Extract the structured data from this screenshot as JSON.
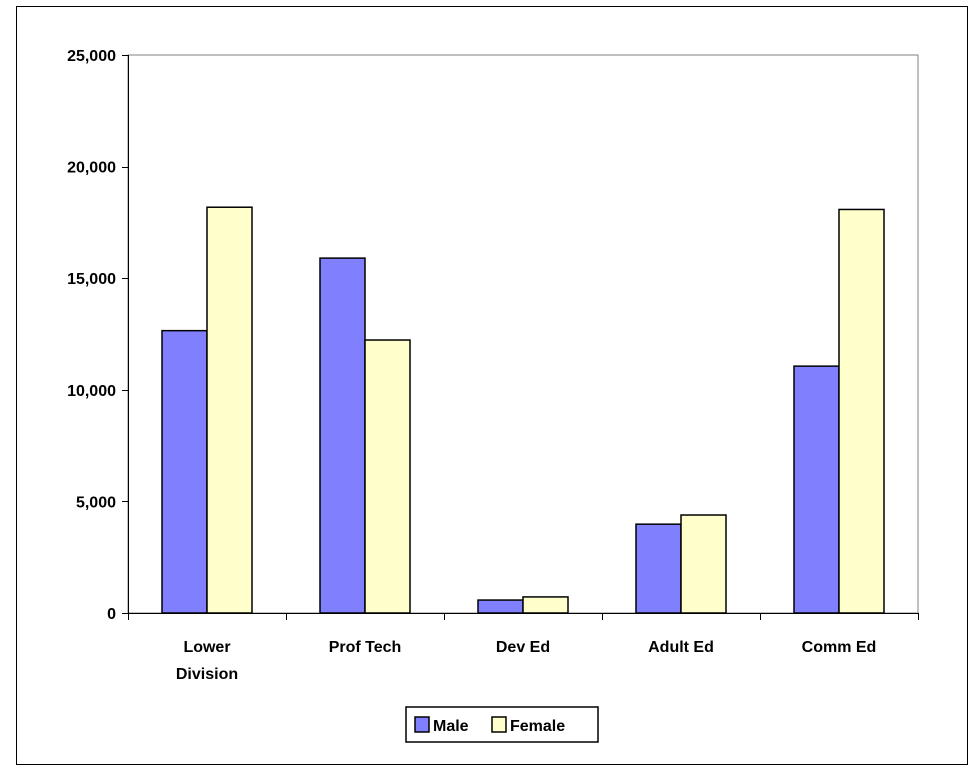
{
  "chart_data": {
    "type": "bar",
    "categories": [
      [
        "Lower",
        "Division"
      ],
      [
        "Prof Tech"
      ],
      [
        "Dev Ed"
      ],
      [
        "Adult Ed"
      ],
      [
        "Comm Ed"
      ]
    ],
    "series": [
      {
        "name": "Male",
        "color": "#8080ff",
        "values": [
          12650,
          15900,
          580,
          3980,
          11060
        ]
      },
      {
        "name": "Female",
        "color": "#ffffcc",
        "values": [
          18180,
          12230,
          720,
          4390,
          18080
        ]
      }
    ],
    "ylim": [
      0,
      25000
    ],
    "yticks": [
      "0",
      "5,000",
      "10,000",
      "15,000",
      "20,000",
      "25,000"
    ],
    "ytick_values": [
      0,
      5000,
      10000,
      15000,
      20000,
      25000
    ],
    "grid": true,
    "plot_background": "#ffffff",
    "legend_position": "bottom-center"
  }
}
